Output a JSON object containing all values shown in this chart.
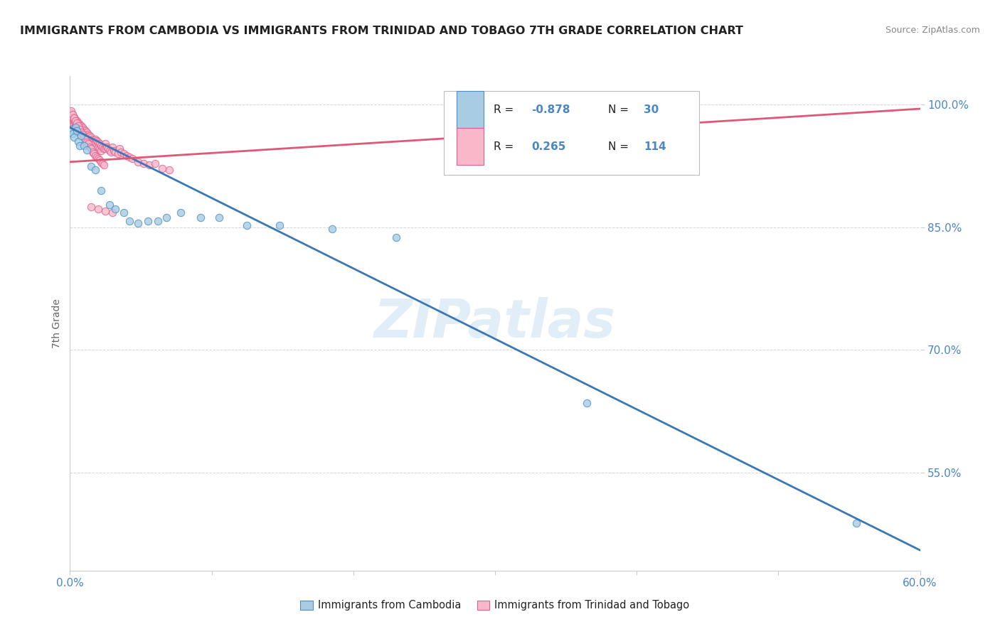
{
  "title": "IMMIGRANTS FROM CAMBODIA VS IMMIGRANTS FROM TRINIDAD AND TOBAGO 7TH GRADE CORRELATION CHART",
  "source": "Source: ZipAtlas.com",
  "ylabel": "7th Grade",
  "xlim": [
    0.0,
    0.6
  ],
  "ylim": [
    0.43,
    1.035
  ],
  "yticks": [
    0.55,
    0.7,
    0.85,
    1.0
  ],
  "ytick_labels": [
    "55.0%",
    "70.0%",
    "85.0%",
    "100.0%"
  ],
  "watermark": "ZIPatlas",
  "blue_color": "#a8cce4",
  "blue_edge_color": "#4a90c4",
  "pink_color": "#f9b8ca",
  "pink_edge_color": "#e06090",
  "blue_line_color": "#3a78b5",
  "pink_line_color": "#e05878",
  "background_color": "#ffffff",
  "blue_scatter_x": [
    0.001,
    0.002,
    0.003,
    0.004,
    0.005,
    0.006,
    0.007,
    0.008,
    0.01,
    0.012,
    0.015,
    0.018,
    0.022,
    0.028,
    0.032,
    0.038,
    0.042,
    0.048,
    0.055,
    0.062,
    0.068,
    0.078,
    0.092,
    0.105,
    0.125,
    0.148,
    0.185,
    0.23,
    0.365,
    0.555
  ],
  "blue_scatter_y": [
    0.97,
    0.965,
    0.96,
    0.972,
    0.968,
    0.955,
    0.95,
    0.962,
    0.95,
    0.945,
    0.925,
    0.92,
    0.895,
    0.878,
    0.872,
    0.868,
    0.858,
    0.855,
    0.858,
    0.858,
    0.862,
    0.868,
    0.862,
    0.862,
    0.852,
    0.852,
    0.848,
    0.838,
    0.635,
    0.488
  ],
  "pink_scatter_x": [
    0.001,
    0.001,
    0.001,
    0.002,
    0.002,
    0.002,
    0.002,
    0.003,
    0.003,
    0.003,
    0.004,
    0.004,
    0.004,
    0.005,
    0.005,
    0.005,
    0.006,
    0.006,
    0.006,
    0.007,
    0.007,
    0.007,
    0.008,
    0.008,
    0.008,
    0.009,
    0.009,
    0.009,
    0.01,
    0.01,
    0.01,
    0.011,
    0.011,
    0.012,
    0.012,
    0.012,
    0.013,
    0.013,
    0.014,
    0.014,
    0.015,
    0.015,
    0.016,
    0.016,
    0.017,
    0.017,
    0.018,
    0.018,
    0.019,
    0.019,
    0.02,
    0.02,
    0.021,
    0.021,
    0.022,
    0.022,
    0.023,
    0.024,
    0.025,
    0.025,
    0.026,
    0.027,
    0.028,
    0.029,
    0.03,
    0.031,
    0.032,
    0.034,
    0.035,
    0.036,
    0.038,
    0.04,
    0.042,
    0.044,
    0.048,
    0.052,
    0.056,
    0.06,
    0.065,
    0.07,
    0.015,
    0.02,
    0.025,
    0.03,
    0.002,
    0.003,
    0.004,
    0.005,
    0.006,
    0.001,
    0.002,
    0.003,
    0.004,
    0.005,
    0.006,
    0.007,
    0.008,
    0.009,
    0.01,
    0.011,
    0.012,
    0.013,
    0.014,
    0.015,
    0.016,
    0.017,
    0.018,
    0.019,
    0.02,
    0.021,
    0.022,
    0.023,
    0.024
  ],
  "pink_scatter_y": [
    0.99,
    0.985,
    0.98,
    0.988,
    0.982,
    0.978,
    0.975,
    0.985,
    0.98,
    0.976,
    0.982,
    0.978,
    0.974,
    0.98,
    0.976,
    0.972,
    0.978,
    0.974,
    0.97,
    0.976,
    0.972,
    0.968,
    0.974,
    0.97,
    0.966,
    0.972,
    0.968,
    0.964,
    0.97,
    0.966,
    0.962,
    0.968,
    0.964,
    0.966,
    0.962,
    0.958,
    0.964,
    0.96,
    0.962,
    0.958,
    0.96,
    0.956,
    0.958,
    0.954,
    0.956,
    0.952,
    0.958,
    0.952,
    0.956,
    0.95,
    0.954,
    0.948,
    0.952,
    0.946,
    0.95,
    0.944,
    0.948,
    0.946,
    0.952,
    0.946,
    0.948,
    0.946,
    0.944,
    0.942,
    0.948,
    0.944,
    0.942,
    0.94,
    0.946,
    0.942,
    0.94,
    0.938,
    0.936,
    0.934,
    0.93,
    0.928,
    0.926,
    0.928,
    0.922,
    0.92,
    0.875,
    0.872,
    0.87,
    0.868,
    0.985,
    0.982,
    0.978,
    0.975,
    0.972,
    0.992,
    0.988,
    0.984,
    0.98,
    0.978,
    0.974,
    0.97,
    0.966,
    0.964,
    0.96,
    0.958,
    0.954,
    0.952,
    0.948,
    0.946,
    0.942,
    0.94,
    0.938,
    0.936,
    0.934,
    0.932,
    0.93,
    0.928,
    0.926
  ],
  "blue_trendline_x": [
    0.0,
    0.6
  ],
  "blue_trendline_y": [
    0.972,
    0.455
  ],
  "pink_trendline_x": [
    0.0,
    0.6
  ],
  "pink_trendline_y": [
    0.93,
    0.995
  ]
}
